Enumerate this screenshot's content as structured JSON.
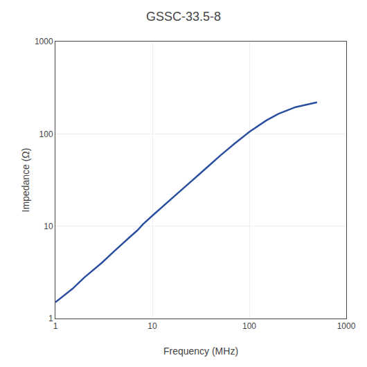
{
  "chart_data": {
    "type": "line",
    "title": "GSSC-33.5-8",
    "xlabel": "Frequency (MHz)",
    "ylabel": "Impedance (Ω)",
    "x": [
      1,
      1.5,
      2,
      3,
      4,
      5,
      6,
      7,
      8,
      10,
      15,
      20,
      30,
      40,
      50,
      70,
      100,
      150,
      200,
      300,
      400,
      500
    ],
    "values": [
      1.5,
      2.1,
      2.8,
      4.0,
      5.3,
      6.5,
      7.8,
      9.0,
      10.5,
      13.0,
      19.0,
      25.0,
      36.0,
      47.0,
      58.0,
      78.0,
      105.0,
      140.0,
      165.0,
      195.0,
      210.0,
      220.0
    ],
    "color": "#2B4FA0",
    "log": true,
    "xlim": [
      1,
      1000
    ],
    "ylim": [
      1,
      1000
    ],
    "xticks": [
      1,
      10,
      100,
      1000
    ],
    "yticks": [
      1,
      10,
      100,
      1000
    ],
    "grid": true
  }
}
